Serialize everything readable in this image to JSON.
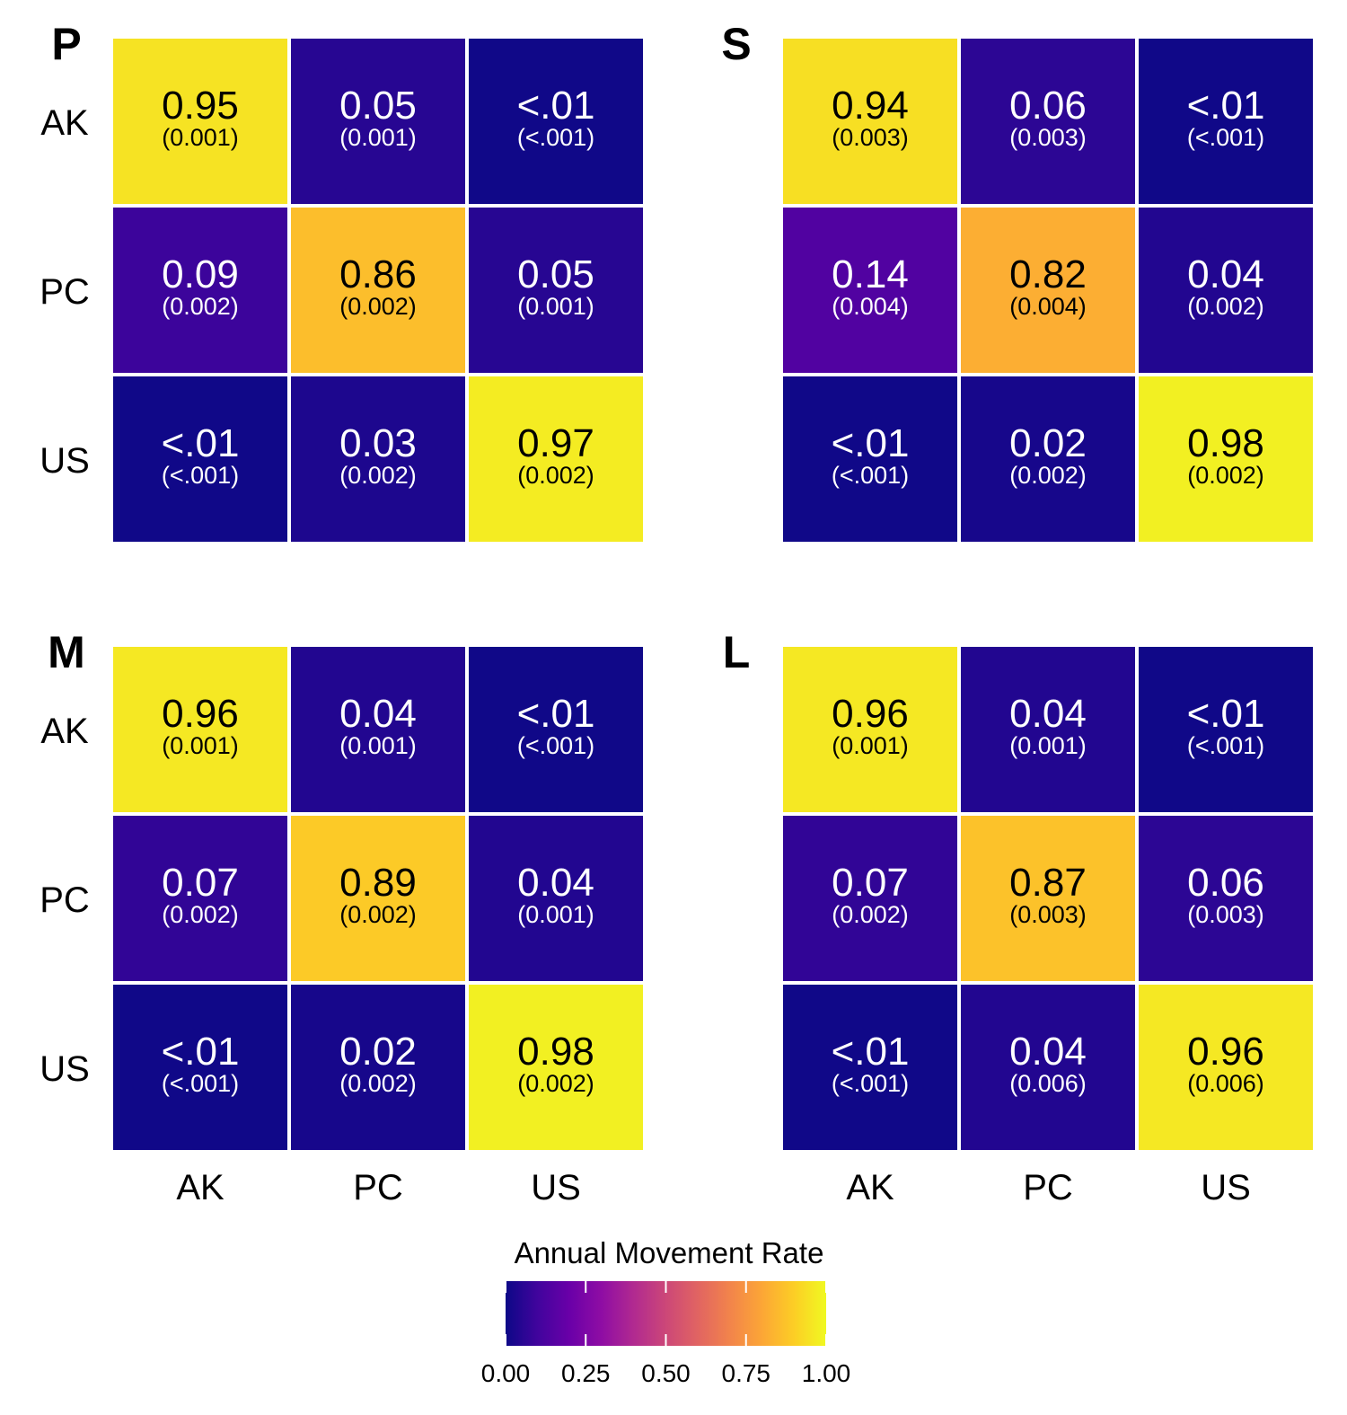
{
  "chart_data": {
    "type": "heatmap",
    "colormap": "plasma",
    "shared_x_labels": [
      "AK",
      "PC",
      "US"
    ],
    "shared_y_labels": [
      "AK",
      "PC",
      "US"
    ],
    "panels": [
      {
        "label": "P",
        "values": [
          [
            0.95,
            0.05,
            0.005
          ],
          [
            0.09,
            0.86,
            0.05
          ],
          [
            0.005,
            0.03,
            0.97
          ]
        ],
        "text": [
          [
            "0.95",
            "0.05",
            "<.01"
          ],
          [
            "0.09",
            "0.86",
            "0.05"
          ],
          [
            "<.01",
            "0.03",
            "0.97"
          ]
        ],
        "se": [
          [
            "(0.001)",
            "(0.001)",
            "(<.001)"
          ],
          [
            "(0.002)",
            "(0.002)",
            "(0.001)"
          ],
          [
            "(<.001)",
            "(0.002)",
            "(0.002)"
          ]
        ]
      },
      {
        "label": "S",
        "values": [
          [
            0.94,
            0.06,
            0.005
          ],
          [
            0.14,
            0.82,
            0.04
          ],
          [
            0.005,
            0.02,
            0.98
          ]
        ],
        "text": [
          [
            "0.94",
            "0.06",
            "<.01"
          ],
          [
            "0.14",
            "0.82",
            "0.04"
          ],
          [
            "<.01",
            "0.02",
            "0.98"
          ]
        ],
        "se": [
          [
            "(0.003)",
            "(0.003)",
            "(<.001)"
          ],
          [
            "(0.004)",
            "(0.004)",
            "(0.002)"
          ],
          [
            "(<.001)",
            "(0.002)",
            "(0.002)"
          ]
        ]
      },
      {
        "label": "M",
        "values": [
          [
            0.96,
            0.04,
            0.005
          ],
          [
            0.07,
            0.89,
            0.04
          ],
          [
            0.005,
            0.02,
            0.98
          ]
        ],
        "text": [
          [
            "0.96",
            "0.04",
            "<.01"
          ],
          [
            "0.07",
            "0.89",
            "0.04"
          ],
          [
            "<.01",
            "0.02",
            "0.98"
          ]
        ],
        "se": [
          [
            "(0.001)",
            "(0.001)",
            "(<.001)"
          ],
          [
            "(0.002)",
            "(0.002)",
            "(0.001)"
          ],
          [
            "(<.001)",
            "(0.002)",
            "(0.002)"
          ]
        ]
      },
      {
        "label": "L",
        "values": [
          [
            0.96,
            0.04,
            0.005
          ],
          [
            0.07,
            0.87,
            0.06
          ],
          [
            0.005,
            0.04,
            0.96
          ]
        ],
        "text": [
          [
            "0.96",
            "0.04",
            "<.01"
          ],
          [
            "0.07",
            "0.87",
            "0.06"
          ],
          [
            "<.01",
            "0.04",
            "0.96"
          ]
        ],
        "se": [
          [
            "(0.001)",
            "(0.001)",
            "(<.001)"
          ],
          [
            "(0.002)",
            "(0.003)",
            "(0.003)"
          ],
          [
            "(<.001)",
            "(0.006)",
            "(0.006)"
          ]
        ]
      }
    ],
    "legend": {
      "title": "Annual Movement Rate",
      "range": [
        0,
        1
      ],
      "ticks": [
        "0.00",
        "0.25",
        "0.50",
        "0.75",
        "1.00"
      ]
    }
  }
}
